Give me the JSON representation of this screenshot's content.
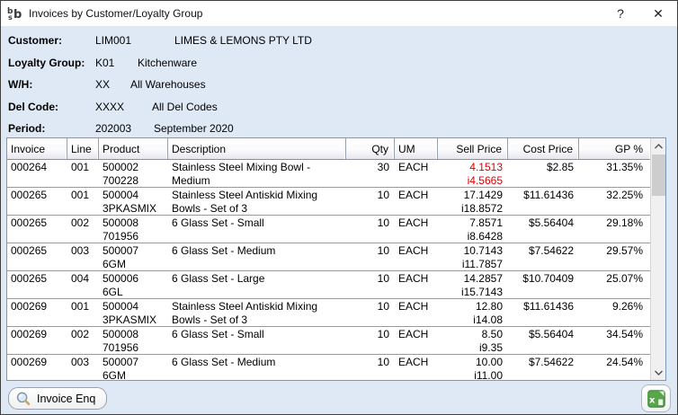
{
  "window": {
    "title": "Invoices by Customer/Loyalty Group",
    "help_label": "?",
    "close_label": "✕"
  },
  "info": {
    "rows": [
      {
        "label": "Customer:",
        "code": "LIM001",
        "name": "LIMES & LEMONS PTY LTD"
      },
      {
        "label": "Loyalty Group:",
        "code": "K01",
        "name": "Kitchenware"
      },
      {
        "label": "W/H:",
        "code": "XX",
        "name": "All Warehouses"
      },
      {
        "label": "Del Code:",
        "code": "XXXX",
        "name": "All Del Codes"
      },
      {
        "label": "Period:",
        "code": "202003",
        "name": "September 2020"
      }
    ]
  },
  "table": {
    "columns": [
      "Invoice",
      "Line",
      "Product",
      "Description",
      "Qty",
      "UM",
      "Sell Price",
      "Cost Price",
      "GP %"
    ],
    "rows": [
      {
        "invoice": "000264",
        "line": "001",
        "product": [
          "500002",
          "700228"
        ],
        "description": [
          "Stainless Steel Mixing Bowl -",
          "Medium"
        ],
        "qty": "30",
        "um": "EACH",
        "sell": [
          "4.1513",
          "i4.5665"
        ],
        "sell_red": true,
        "cost": "$2.85",
        "gp": "31.35%"
      },
      {
        "invoice": "000265",
        "line": "001",
        "product": [
          "500004",
          "3PKASMIX"
        ],
        "description": [
          "Stainless Steel Antiskid Mixing",
          "Bowls - Set of 3"
        ],
        "qty": "10",
        "um": "EACH",
        "sell": [
          "17.1429",
          "i18.8572"
        ],
        "sell_red": false,
        "cost": "$11.61436",
        "gp": "32.25%"
      },
      {
        "invoice": "000265",
        "line": "002",
        "product": [
          "500008",
          "701956"
        ],
        "description": [
          "6 Glass Set - Small"
        ],
        "qty": "10",
        "um": "EACH",
        "sell": [
          "7.8571",
          "i8.6428"
        ],
        "sell_red": false,
        "cost": "$5.56404",
        "gp": "29.18%"
      },
      {
        "invoice": "000265",
        "line": "003",
        "product": [
          "500007",
          "6GM"
        ],
        "description": [
          "6 Glass Set - Medium"
        ],
        "qty": "10",
        "um": "EACH",
        "sell": [
          "10.7143",
          "i11.7857"
        ],
        "sell_red": false,
        "cost": "$7.54622",
        "gp": "29.57%"
      },
      {
        "invoice": "000265",
        "line": "004",
        "product": [
          "500006",
          "6GL"
        ],
        "description": [
          "6 Glass Set - Large"
        ],
        "qty": "10",
        "um": "EACH",
        "sell": [
          "14.2857",
          "i15.7143"
        ],
        "sell_red": false,
        "cost": "$10.70409",
        "gp": "25.07%"
      },
      {
        "invoice": "000269",
        "line": "001",
        "product": [
          "500004",
          "3PKASMIX"
        ],
        "description": [
          "Stainless Steel Antiskid Mixing",
          "Bowls - Set of 3"
        ],
        "qty": "10",
        "um": "EACH",
        "sell": [
          "12.80",
          "i14.08"
        ],
        "sell_red": false,
        "cost": "$11.61436",
        "gp": "9.26%"
      },
      {
        "invoice": "000269",
        "line": "002",
        "product": [
          "500008",
          "701956"
        ],
        "description": [
          "6 Glass Set - Small"
        ],
        "qty": "10",
        "um": "EACH",
        "sell": [
          "8.50",
          "i9.35"
        ],
        "sell_red": false,
        "cost": "$5.56404",
        "gp": "34.54%"
      },
      {
        "invoice": "000269",
        "line": "003",
        "product": [
          "500007",
          "6GM"
        ],
        "description": [
          "6 Glass Set - Medium"
        ],
        "qty": "10",
        "um": "EACH",
        "sell": [
          "10.00",
          "i11.00"
        ],
        "sell_red": false,
        "cost": "$7.54622",
        "gp": "24.54%"
      }
    ]
  },
  "footer": {
    "invoice_enq_label": "Invoice Enq"
  },
  "colors": {
    "panel_bg": "#dfe9f5",
    "table_border": "#7b99bb",
    "negative_red": "#da0000",
    "excel_green": "#57a64a"
  }
}
